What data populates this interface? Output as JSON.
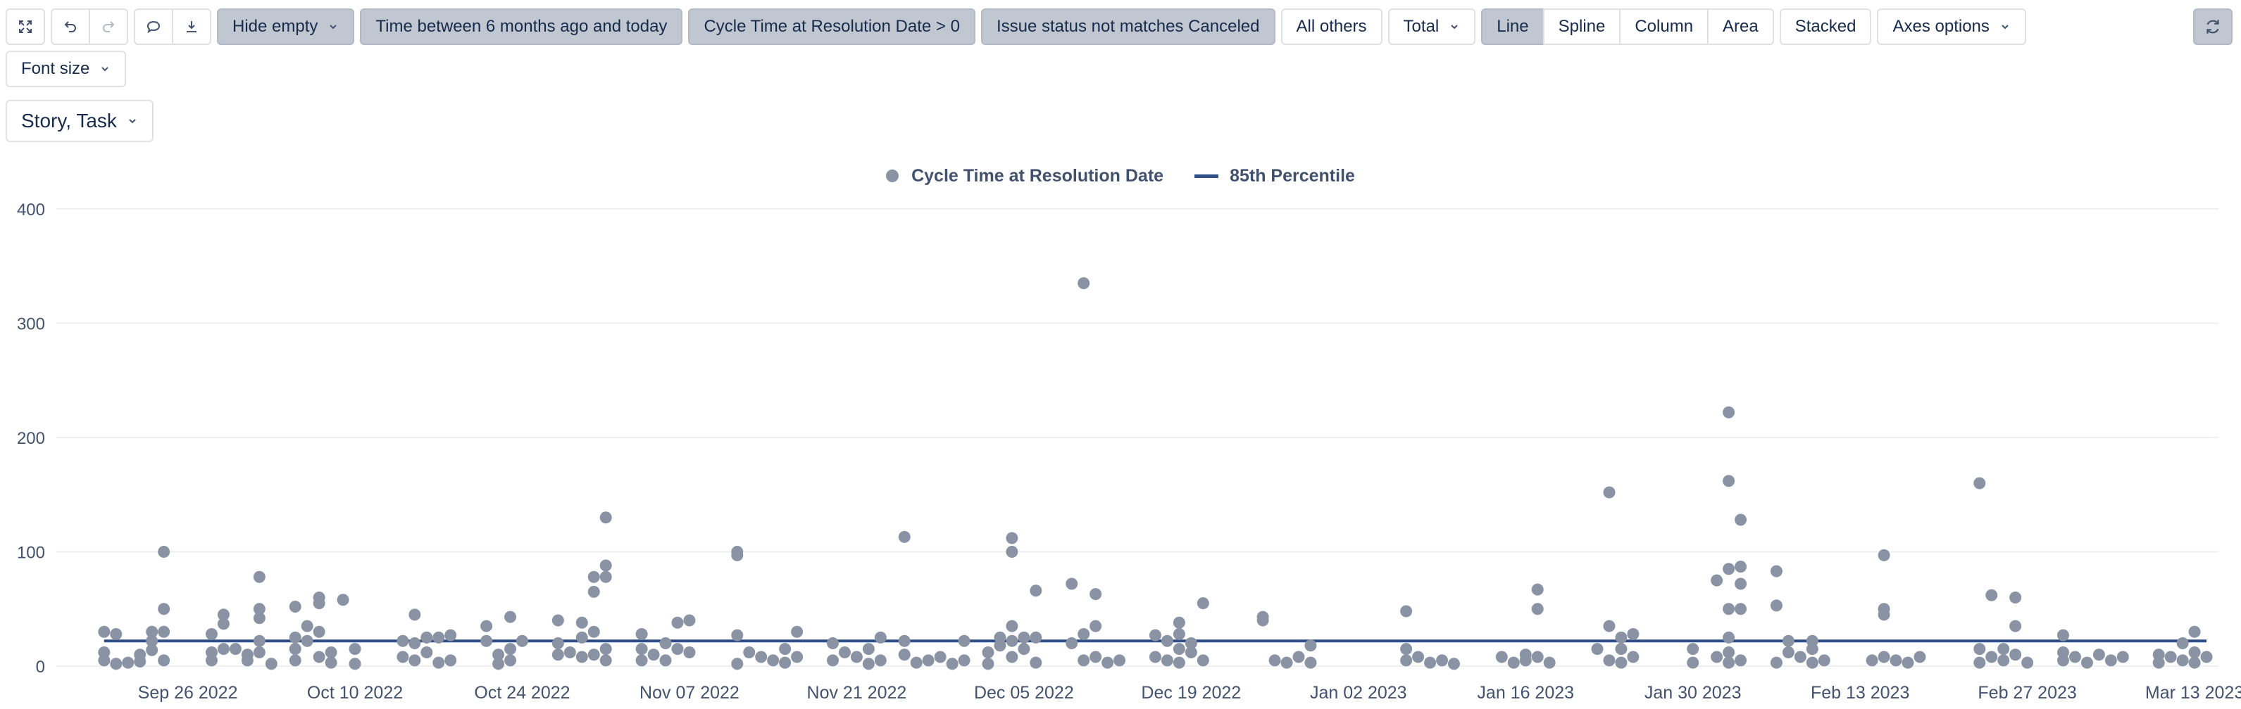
{
  "toolbar": {
    "hide_empty": "Hide empty",
    "filters": [
      "Time between 6 months ago and today",
      "Cycle Time at Resolution Date > 0",
      "Issue status not matches Canceled"
    ],
    "all_others": "All others",
    "total": "Total",
    "chart_types": [
      "Line",
      "Spline",
      "Column",
      "Area"
    ],
    "active_chart_type": "Line",
    "stacked": "Stacked",
    "axes_options": "Axes options",
    "font_size": "Font size",
    "issue_types": "Story, Task"
  },
  "colors": {
    "accent": "#2e4f87",
    "points": "#8993a4",
    "active_button": "#c1c7d0"
  },
  "chart_data": {
    "type": "scatter",
    "title": "",
    "xlabel": "",
    "ylabel": "",
    "ylim": [
      0,
      400
    ],
    "yticks": [
      0,
      100,
      200,
      300,
      400
    ],
    "xlim": [
      "2022-09-15",
      "2023-03-15"
    ],
    "xticks": [
      "Sep 26 2022",
      "Oct 10 2022",
      "Oct 24 2022",
      "Nov 07 2022",
      "Nov 21 2022",
      "Dec 05 2022",
      "Dec 19 2022",
      "Jan 02 2023",
      "Jan 16 2023",
      "Jan 30 2023",
      "Feb 13 2023",
      "Feb 27 2023",
      "Mar 13 2023"
    ],
    "grid": "horizontal",
    "legend": "top-center",
    "series": [
      {
        "name": "Cycle Time at Resolution Date",
        "color": "#8993a4",
        "points": [
          [
            "2022-09-19",
            30
          ],
          [
            "2022-09-19",
            12
          ],
          [
            "2022-09-19",
            5
          ],
          [
            "2022-09-20",
            28
          ],
          [
            "2022-09-20",
            2
          ],
          [
            "2022-09-21",
            3
          ],
          [
            "2022-09-22",
            4
          ],
          [
            "2022-09-22",
            10
          ],
          [
            "2022-09-23",
            22
          ],
          [
            "2022-09-23",
            30
          ],
          [
            "2022-09-23",
            14
          ],
          [
            "2022-09-24",
            100
          ],
          [
            "2022-09-24",
            50
          ],
          [
            "2022-09-24",
            30
          ],
          [
            "2022-09-24",
            5
          ],
          [
            "2022-09-28",
            28
          ],
          [
            "2022-09-28",
            12
          ],
          [
            "2022-09-28",
            5
          ],
          [
            "2022-09-29",
            45
          ],
          [
            "2022-09-29",
            37
          ],
          [
            "2022-09-29",
            15
          ],
          [
            "2022-09-30",
            15
          ],
          [
            "2022-10-01",
            10
          ],
          [
            "2022-10-01",
            5
          ],
          [
            "2022-10-02",
            78
          ],
          [
            "2022-10-02",
            50
          ],
          [
            "2022-10-02",
            42
          ],
          [
            "2022-10-02",
            22
          ],
          [
            "2022-10-02",
            12
          ],
          [
            "2022-10-03",
            2
          ],
          [
            "2022-10-05",
            52
          ],
          [
            "2022-10-05",
            25
          ],
          [
            "2022-10-05",
            15
          ],
          [
            "2022-10-05",
            5
          ],
          [
            "2022-10-06",
            35
          ],
          [
            "2022-10-06",
            22
          ],
          [
            "2022-10-07",
            55
          ],
          [
            "2022-10-07",
            60
          ],
          [
            "2022-10-07",
            30
          ],
          [
            "2022-10-07",
            8
          ],
          [
            "2022-10-08",
            12
          ],
          [
            "2022-10-08",
            3
          ],
          [
            "2022-10-09",
            58
          ],
          [
            "2022-10-10",
            15
          ],
          [
            "2022-10-10",
            2
          ],
          [
            "2022-10-14",
            22
          ],
          [
            "2022-10-14",
            8
          ],
          [
            "2022-10-15",
            45
          ],
          [
            "2022-10-15",
            20
          ],
          [
            "2022-10-15",
            5
          ],
          [
            "2022-10-16",
            25
          ],
          [
            "2022-10-16",
            12
          ],
          [
            "2022-10-17",
            25
          ],
          [
            "2022-10-17",
            3
          ],
          [
            "2022-10-18",
            27
          ],
          [
            "2022-10-18",
            5
          ],
          [
            "2022-10-21",
            35
          ],
          [
            "2022-10-21",
            22
          ],
          [
            "2022-10-22",
            10
          ],
          [
            "2022-10-22",
            2
          ],
          [
            "2022-10-23",
            43
          ],
          [
            "2022-10-23",
            15
          ],
          [
            "2022-10-23",
            5
          ],
          [
            "2022-10-24",
            22
          ],
          [
            "2022-10-27",
            40
          ],
          [
            "2022-10-27",
            20
          ],
          [
            "2022-10-27",
            10
          ],
          [
            "2022-10-28",
            12
          ],
          [
            "2022-10-29",
            38
          ],
          [
            "2022-10-29",
            25
          ],
          [
            "2022-10-29",
            8
          ],
          [
            "2022-10-30",
            78
          ],
          [
            "2022-10-30",
            65
          ],
          [
            "2022-10-30",
            30
          ],
          [
            "2022-10-30",
            10
          ],
          [
            "2022-10-31",
            130
          ],
          [
            "2022-10-31",
            88
          ],
          [
            "2022-10-31",
            78
          ],
          [
            "2022-10-31",
            15
          ],
          [
            "2022-10-31",
            5
          ],
          [
            "2022-11-03",
            28
          ],
          [
            "2022-11-03",
            15
          ],
          [
            "2022-11-03",
            5
          ],
          [
            "2022-11-04",
            10
          ],
          [
            "2022-11-05",
            20
          ],
          [
            "2022-11-05",
            5
          ],
          [
            "2022-11-06",
            38
          ],
          [
            "2022-11-06",
            15
          ],
          [
            "2022-11-07",
            40
          ],
          [
            "2022-11-07",
            12
          ],
          [
            "2022-11-11",
            100
          ],
          [
            "2022-11-11",
            97
          ],
          [
            "2022-11-11",
            27
          ],
          [
            "2022-11-11",
            2
          ],
          [
            "2022-11-12",
            12
          ],
          [
            "2022-11-13",
            8
          ],
          [
            "2022-11-14",
            5
          ],
          [
            "2022-11-15",
            15
          ],
          [
            "2022-11-15",
            3
          ],
          [
            "2022-11-16",
            30
          ],
          [
            "2022-11-16",
            8
          ],
          [
            "2022-11-19",
            20
          ],
          [
            "2022-11-19",
            5
          ],
          [
            "2022-11-20",
            12
          ],
          [
            "2022-11-21",
            8
          ],
          [
            "2022-11-22",
            15
          ],
          [
            "2022-11-22",
            2
          ],
          [
            "2022-11-23",
            25
          ],
          [
            "2022-11-23",
            5
          ],
          [
            "2022-11-25",
            113
          ],
          [
            "2022-11-25",
            22
          ],
          [
            "2022-11-25",
            10
          ],
          [
            "2022-11-26",
            3
          ],
          [
            "2022-11-27",
            5
          ],
          [
            "2022-11-28",
            8
          ],
          [
            "2022-11-29",
            2
          ],
          [
            "2022-11-30",
            22
          ],
          [
            "2022-11-30",
            5
          ],
          [
            "2022-12-02",
            12
          ],
          [
            "2022-12-02",
            2
          ],
          [
            "2022-12-03",
            25
          ],
          [
            "2022-12-03",
            18
          ],
          [
            "2022-12-04",
            112
          ],
          [
            "2022-12-04",
            100
          ],
          [
            "2022-12-04",
            35
          ],
          [
            "2022-12-04",
            22
          ],
          [
            "2022-12-04",
            8
          ],
          [
            "2022-12-05",
            25
          ],
          [
            "2022-12-05",
            15
          ],
          [
            "2022-12-06",
            66
          ],
          [
            "2022-12-06",
            25
          ],
          [
            "2022-12-06",
            3
          ],
          [
            "2022-12-09",
            72
          ],
          [
            "2022-12-09",
            20
          ],
          [
            "2022-12-10",
            335
          ],
          [
            "2022-12-10",
            28
          ],
          [
            "2022-12-10",
            5
          ],
          [
            "2022-12-11",
            63
          ],
          [
            "2022-12-11",
            35
          ],
          [
            "2022-12-11",
            8
          ],
          [
            "2022-12-12",
            3
          ],
          [
            "2022-12-13",
            5
          ],
          [
            "2022-12-16",
            27
          ],
          [
            "2022-12-16",
            8
          ],
          [
            "2022-12-17",
            22
          ],
          [
            "2022-12-17",
            5
          ],
          [
            "2022-12-18",
            38
          ],
          [
            "2022-12-18",
            28
          ],
          [
            "2022-12-18",
            15
          ],
          [
            "2022-12-18",
            3
          ],
          [
            "2022-12-19",
            20
          ],
          [
            "2022-12-19",
            12
          ],
          [
            "2022-12-20",
            55
          ],
          [
            "2022-12-20",
            5
          ],
          [
            "2022-12-25",
            43
          ],
          [
            "2022-12-25",
            40
          ],
          [
            "2022-12-26",
            5
          ],
          [
            "2022-12-27",
            3
          ],
          [
            "2022-12-28",
            8
          ],
          [
            "2022-12-29",
            18
          ],
          [
            "2022-12-29",
            3
          ],
          [
            "2023-01-06",
            48
          ],
          [
            "2023-01-06",
            15
          ],
          [
            "2023-01-06",
            5
          ],
          [
            "2023-01-07",
            8
          ],
          [
            "2023-01-08",
            3
          ],
          [
            "2023-01-09",
            5
          ],
          [
            "2023-01-10",
            2
          ],
          [
            "2023-01-14",
            8
          ],
          [
            "2023-01-15",
            3
          ],
          [
            "2023-01-16",
            10
          ],
          [
            "2023-01-16",
            5
          ],
          [
            "2023-01-17",
            67
          ],
          [
            "2023-01-17",
            50
          ],
          [
            "2023-01-17",
            8
          ],
          [
            "2023-01-18",
            3
          ],
          [
            "2023-01-22",
            15
          ],
          [
            "2023-01-23",
            152
          ],
          [
            "2023-01-23",
            35
          ],
          [
            "2023-01-23",
            5
          ],
          [
            "2023-01-24",
            25
          ],
          [
            "2023-01-24",
            15
          ],
          [
            "2023-01-24",
            3
          ],
          [
            "2023-01-25",
            28
          ],
          [
            "2023-01-25",
            8
          ],
          [
            "2023-01-30",
            15
          ],
          [
            "2023-01-30",
            3
          ],
          [
            "2023-02-01",
            75
          ],
          [
            "2023-02-01",
            8
          ],
          [
            "2023-02-02",
            222
          ],
          [
            "2023-02-02",
            162
          ],
          [
            "2023-02-02",
            85
          ],
          [
            "2023-02-02",
            50
          ],
          [
            "2023-02-02",
            25
          ],
          [
            "2023-02-02",
            12
          ],
          [
            "2023-02-02",
            3
          ],
          [
            "2023-02-03",
            128
          ],
          [
            "2023-02-03",
            87
          ],
          [
            "2023-02-03",
            72
          ],
          [
            "2023-02-03",
            50
          ],
          [
            "2023-02-03",
            5
          ],
          [
            "2023-02-06",
            83
          ],
          [
            "2023-02-06",
            53
          ],
          [
            "2023-02-06",
            3
          ],
          [
            "2023-02-07",
            22
          ],
          [
            "2023-02-07",
            12
          ],
          [
            "2023-02-08",
            8
          ],
          [
            "2023-02-09",
            22
          ],
          [
            "2023-02-09",
            15
          ],
          [
            "2023-02-09",
            3
          ],
          [
            "2023-02-10",
            5
          ],
          [
            "2023-02-14",
            5
          ],
          [
            "2023-02-15",
            97
          ],
          [
            "2023-02-15",
            50
          ],
          [
            "2023-02-15",
            45
          ],
          [
            "2023-02-15",
            8
          ],
          [
            "2023-02-16",
            5
          ],
          [
            "2023-02-17",
            3
          ],
          [
            "2023-02-18",
            8
          ],
          [
            "2023-02-23",
            160
          ],
          [
            "2023-02-23",
            15
          ],
          [
            "2023-02-23",
            3
          ],
          [
            "2023-02-24",
            62
          ],
          [
            "2023-02-24",
            8
          ],
          [
            "2023-02-25",
            15
          ],
          [
            "2023-02-25",
            5
          ],
          [
            "2023-02-26",
            60
          ],
          [
            "2023-02-26",
            35
          ],
          [
            "2023-02-26",
            10
          ],
          [
            "2023-02-27",
            3
          ],
          [
            "2023-03-02",
            27
          ],
          [
            "2023-03-02",
            12
          ],
          [
            "2023-03-02",
            5
          ],
          [
            "2023-03-03",
            8
          ],
          [
            "2023-03-04",
            3
          ],
          [
            "2023-03-05",
            10
          ],
          [
            "2023-03-06",
            5
          ],
          [
            "2023-03-07",
            8
          ],
          [
            "2023-03-10",
            10
          ],
          [
            "2023-03-10",
            3
          ],
          [
            "2023-03-11",
            8
          ],
          [
            "2023-03-12",
            5
          ],
          [
            "2023-03-12",
            20
          ],
          [
            "2023-03-13",
            30
          ],
          [
            "2023-03-13",
            12
          ],
          [
            "2023-03-13",
            3
          ],
          [
            "2023-03-14",
            8
          ]
        ]
      },
      {
        "name": "85th Percentile",
        "color": "#2e4f87",
        "line": [
          [
            "2022-09-19",
            22
          ],
          [
            "2023-03-14",
            22
          ]
        ]
      }
    ]
  }
}
